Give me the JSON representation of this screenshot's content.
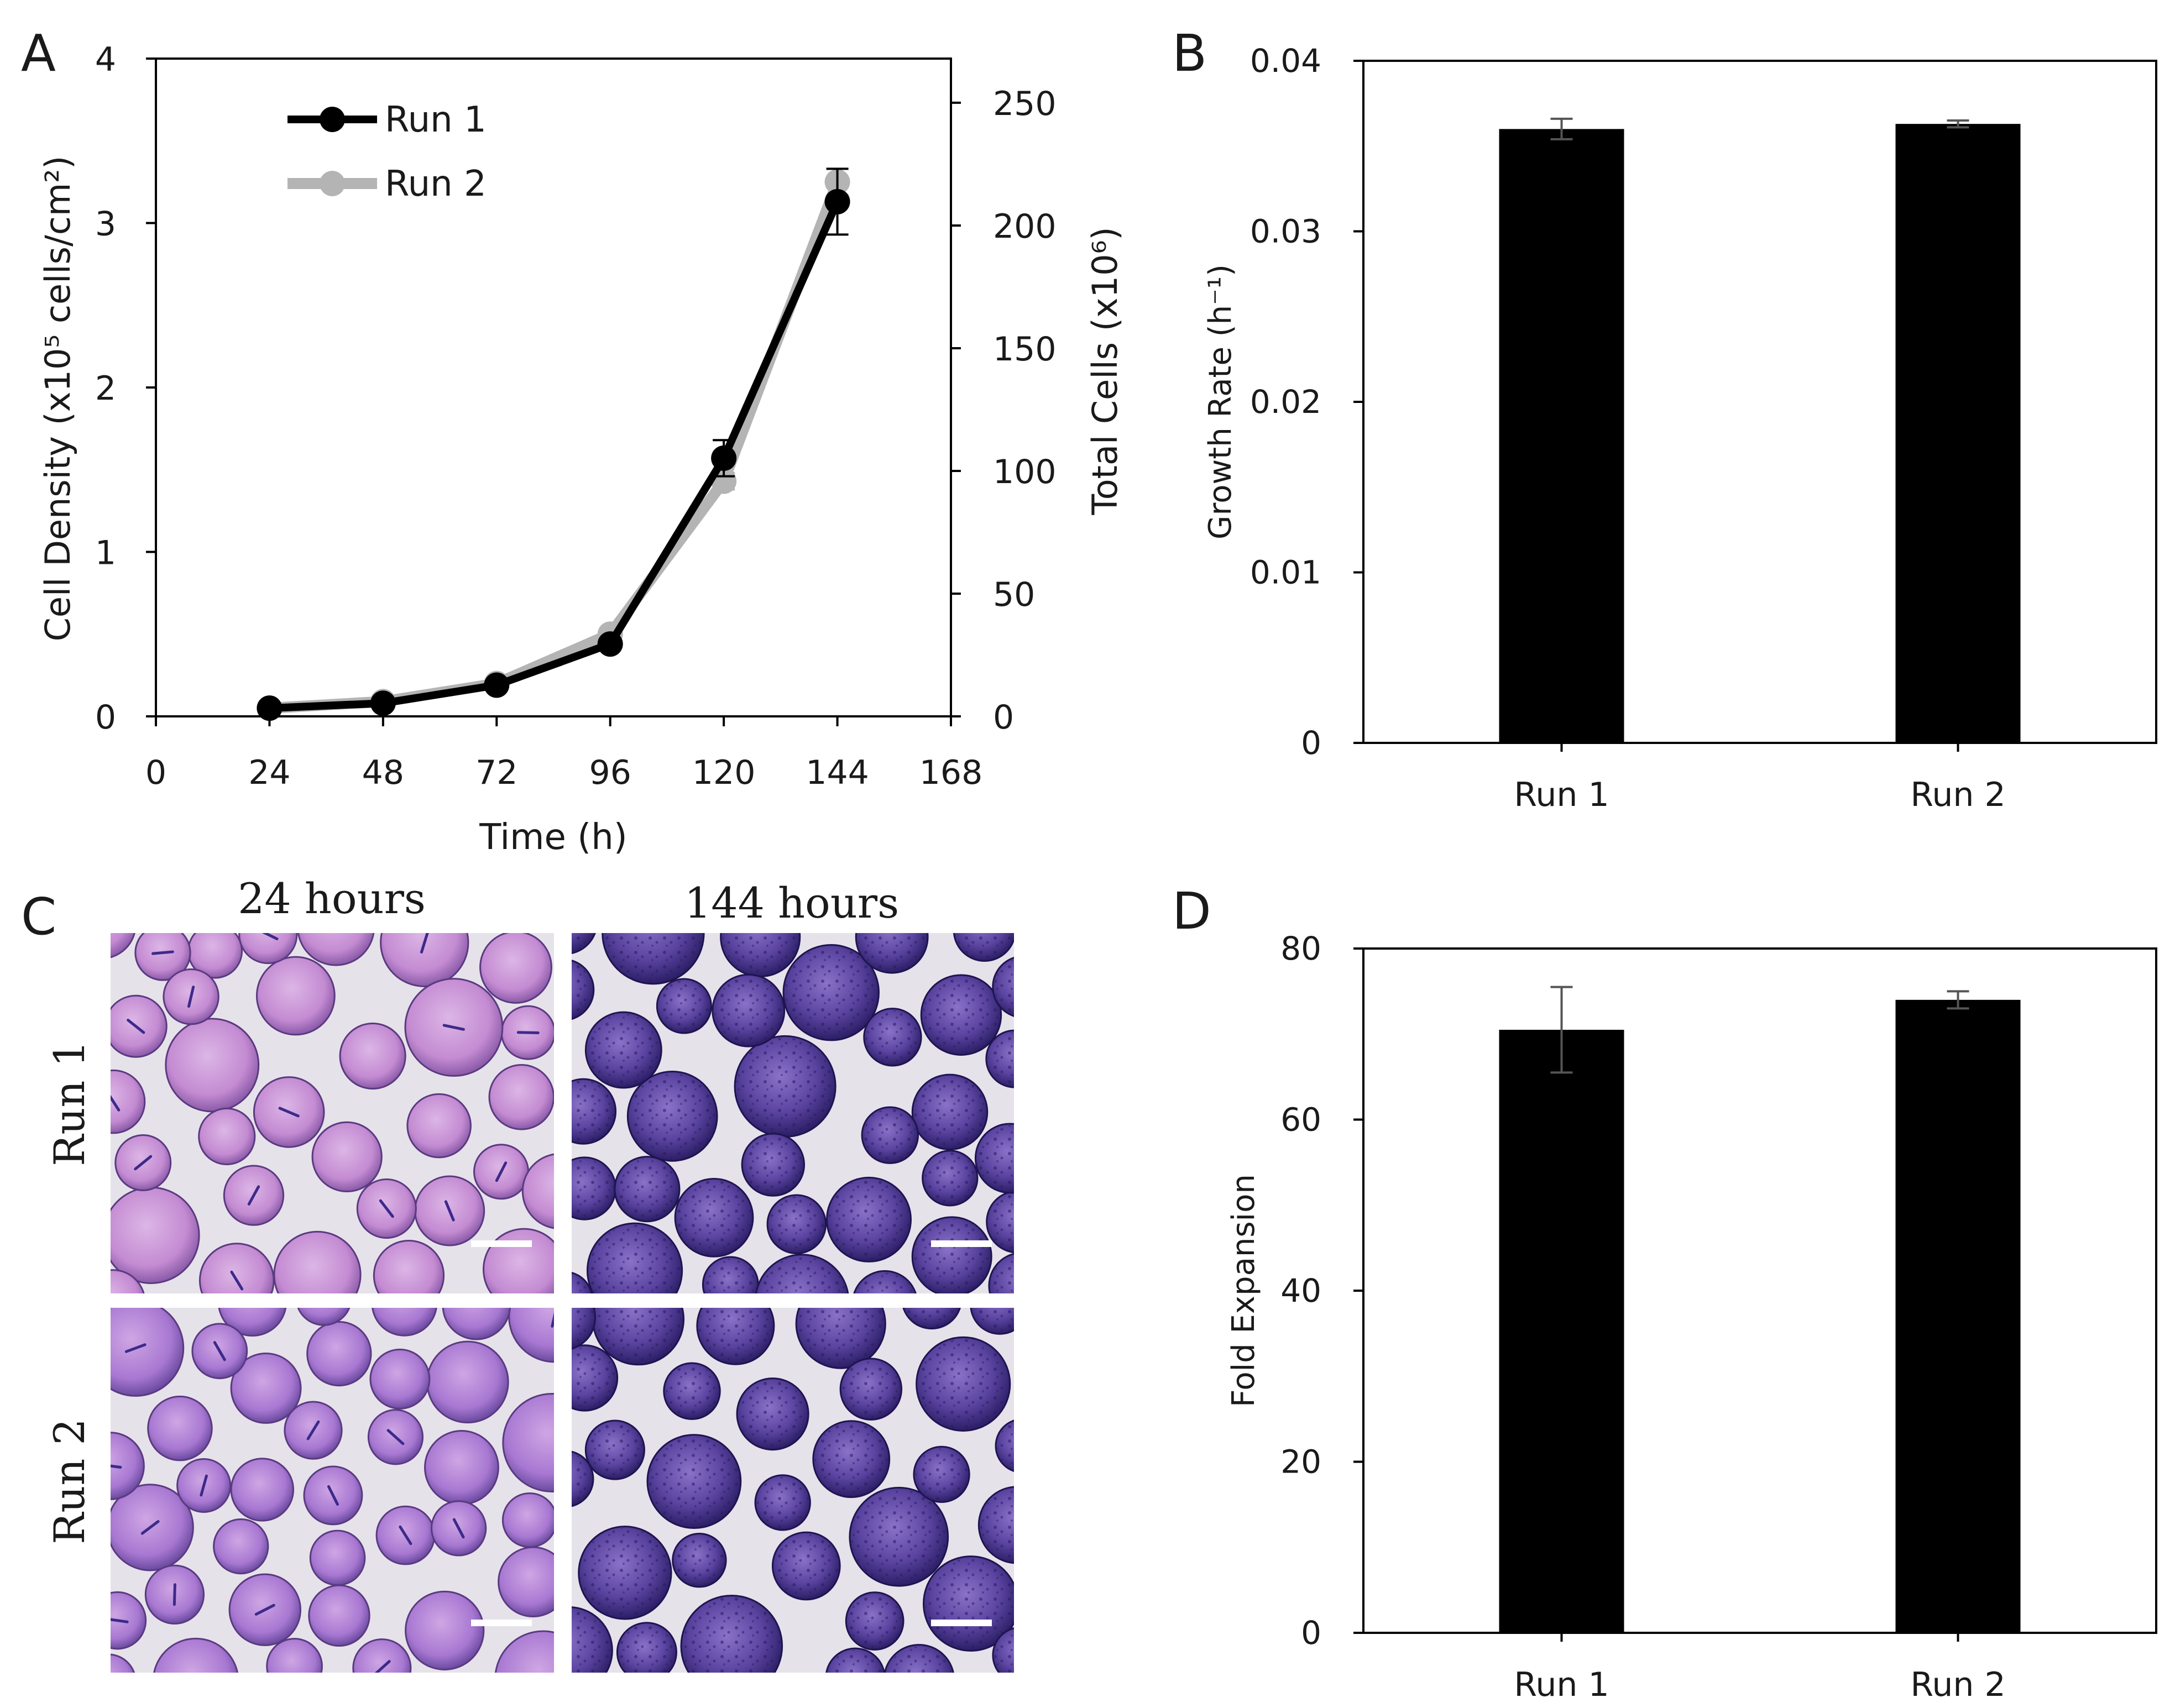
{
  "panel_letters": {
    "a": "A",
    "b": "B",
    "c": "C",
    "d": "D"
  },
  "panel_c": {
    "col_headers": [
      "24 hours",
      "144 hours"
    ],
    "row_labels": [
      "Run 1",
      "Run 2"
    ]
  },
  "colors": {
    "run1": "#000000",
    "run2": "#b4b4b4",
    "bar": "#000000",
    "bead_light": "#c48bd2",
    "bead_dark": "#3e2a84",
    "background_micro": "#e6e2ea"
  },
  "chart_data": [
    {
      "id": "A",
      "type": "line",
      "xlabel": "Time (h)",
      "ylabel": "Cell Density (x10⁵ cells/cm²)",
      "y2label": "Total Cells (x10⁶)",
      "xlim": [
        0,
        168
      ],
      "ylim": [
        0,
        4
      ],
      "y2lim": [
        0,
        268
      ],
      "xticks": [
        0,
        24,
        48,
        72,
        96,
        120,
        144,
        168
      ],
      "yticks": [
        0,
        1,
        2,
        3,
        4
      ],
      "y2ticks": [
        0,
        50,
        100,
        150,
        200,
        250
      ],
      "x": [
        24,
        48,
        72,
        96,
        120,
        144
      ],
      "legend_position": "top-left",
      "series": [
        {
          "name": "Run 1",
          "color": "#000000",
          "values": [
            0.05,
            0.08,
            0.19,
            0.44,
            1.57,
            3.13
          ],
          "errors": [
            0.01,
            0.01,
            0.02,
            0.03,
            0.11,
            0.2
          ]
        },
        {
          "name": "Run 2",
          "color": "#b4b4b4",
          "values": [
            0.05,
            0.09,
            0.2,
            0.5,
            1.43,
            3.25
          ],
          "errors": [
            0.01,
            0.01,
            0.02,
            0.03,
            0.05,
            0.08
          ]
        }
      ]
    },
    {
      "id": "B",
      "type": "bar",
      "categories": [
        "Run 1",
        "Run 2"
      ],
      "values": [
        0.036,
        0.0363
      ],
      "errors": [
        0.0006,
        0.0002
      ],
      "ylabel": "Growth Rate (h⁻¹)",
      "ylim": [
        0,
        0.04
      ],
      "yticks": [
        0,
        0.01,
        0.02,
        0.03,
        0.04
      ],
      "ytick_labels": [
        "0",
        "0.01",
        "0.02",
        "0.03",
        "0.04"
      ]
    },
    {
      "id": "D",
      "type": "bar",
      "categories": [
        "Run 1",
        "Run 2"
      ],
      "values": [
        70.5,
        74
      ],
      "errors": [
        5,
        1
      ],
      "ylabel": "Fold Expansion",
      "ylim": [
        0,
        80
      ],
      "yticks": [
        0,
        20,
        40,
        60,
        80
      ],
      "ytick_labels": [
        "0",
        "20",
        "40",
        "60",
        "80"
      ]
    }
  ]
}
